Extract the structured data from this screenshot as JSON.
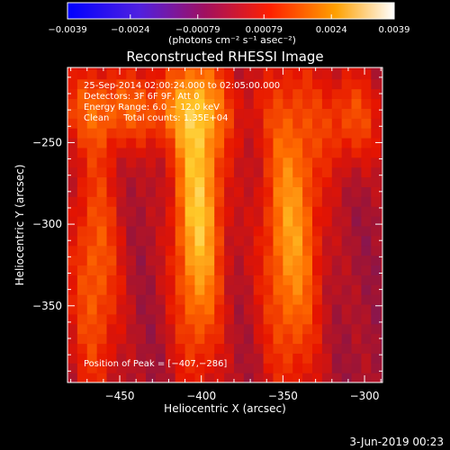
{
  "chart_data": {
    "type": "heatmap",
    "title": "Reconstructed RHESSI Image",
    "xlabel": "Heliocentric X (arcsec)",
    "ylabel": "Heliocentric Y (arcsec)",
    "xlim": [
      -482,
      -289
    ],
    "ylim": [
      -397,
      -204
    ],
    "x_ticks": [
      -450,
      -400,
      -350,
      -300
    ],
    "x_tick_labels": [
      "−450",
      "−400",
      "−350",
      "−300"
    ],
    "y_ticks": [
      -350,
      -300,
      -250
    ],
    "y_tick_labels": [
      "−350",
      "−300",
      "−250"
    ],
    "grid": false,
    "colorbar": {
      "range": [
        -0.0039,
        0.0039
      ],
      "ticks": [
        -0.0039,
        -0.0024,
        -0.00079,
        0.00079,
        0.0024,
        0.0039
      ],
      "tick_labels": [
        "−0.0039",
        "−0.0024",
        "−0.00079",
        "0.00079",
        "0.0024",
        "0.0039"
      ],
      "units": "(photons cm⁻² s⁻¹ asec⁻²)",
      "colormap": [
        "#0000ff",
        "#8040c0",
        "#ff0000",
        "#ff8000",
        "#ffffff"
      ]
    },
    "annotations": [
      "25-Sep-2014 02:00:24.000 to 02:05:00.000",
      "Detectors: 3F 6F 9F, Att 0",
      "Energy Range: 6.0 − 12.0 keV",
      "Clean     Total counts: 1.35E+04"
    ],
    "peak_label": "Position of Peak = [−407,−286]",
    "peak": [
      -407,
      -286
    ],
    "bands": [
      {
        "x_center": -465,
        "y_center": -330,
        "x_sigma": 11,
        "y_sigma": 60,
        "amplitude": 0.0022
      },
      {
        "x_center": -402,
        "y_center": -290,
        "x_sigma": 11,
        "y_sigma": 70,
        "amplitude": 0.0037
      },
      {
        "x_center": -440,
        "y_center": -228,
        "x_sigma": 45,
        "y_sigma": 18,
        "amplitude": 0.002
      },
      {
        "x_center": -345,
        "y_center": -305,
        "x_sigma": 13,
        "y_sigma": 70,
        "amplitude": 0.003
      },
      {
        "x_center": -308,
        "y_center": -235,
        "x_sigma": 14,
        "y_sigma": 22,
        "amplitude": 0.0018
      }
    ],
    "background_level": -0.0012,
    "pixel_size_arcsec": 6
  },
  "footer": {
    "date": "3-Jun-2019 00:23"
  }
}
